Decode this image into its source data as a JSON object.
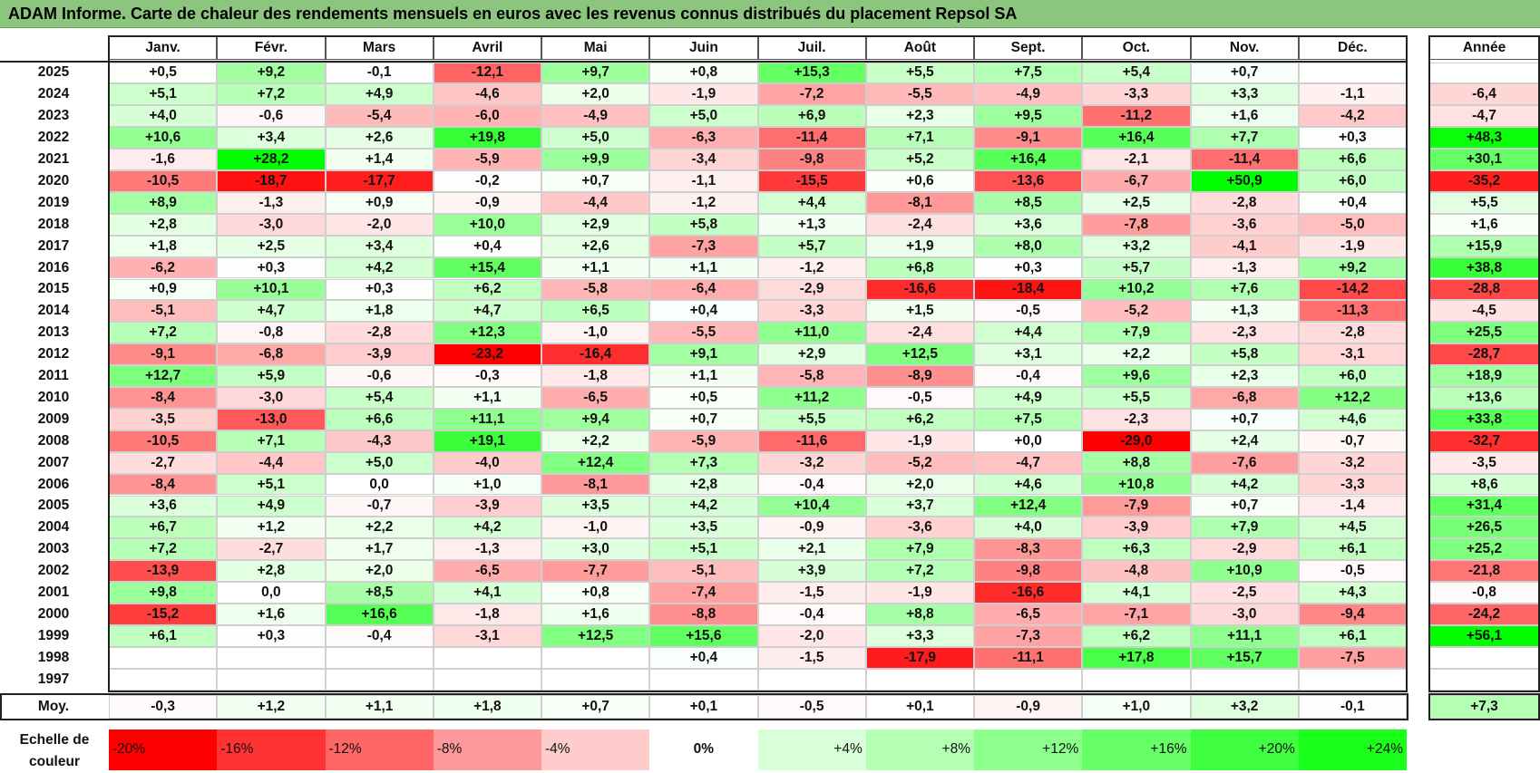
{
  "title": "ADAM Informe. Carte de chaleur des rendements mensuels en euros avec les revenus connus distribués du placement Repsol SA",
  "chart_data": {
    "type": "heatmap",
    "title": "ADAM Informe. Carte de chaleur des rendements mensuels en euros avec les revenus connus distribués du placement Repsol SA",
    "columns": [
      "Janv.",
      "Févr.",
      "Mars",
      "Avril",
      "Mai",
      "Juin",
      "Juil.",
      "Août",
      "Sept.",
      "Oct.",
      "Nov.",
      "Déc."
    ],
    "year_column_label": "Année",
    "rows": [
      {
        "year": "2025",
        "months": [
          "+0,5",
          "+9,2",
          "-0,1",
          "-12,1",
          "+9,7",
          "+0,8",
          "+15,3",
          "+5,5",
          "+7,5",
          "+5,4",
          "+0,7",
          ""
        ],
        "annual": ""
      },
      {
        "year": "2024",
        "months": [
          "+5,1",
          "+7,2",
          "+4,9",
          "-4,6",
          "+2,0",
          "-1,9",
          "-7,2",
          "-5,5",
          "-4,9",
          "-3,3",
          "+3,3",
          "-1,1"
        ],
        "annual": "-6,4"
      },
      {
        "year": "2023",
        "months": [
          "+4,0",
          "-0,6",
          "-5,4",
          "-6,0",
          "-4,9",
          "+5,0",
          "+6,9",
          "+2,3",
          "+9,5",
          "-11,2",
          "+1,6",
          "-4,2"
        ],
        "annual": "-4,7"
      },
      {
        "year": "2022",
        "months": [
          "+10,6",
          "+3,4",
          "+2,6",
          "+19,8",
          "+5,0",
          "-6,3",
          "-11,4",
          "+7,1",
          "-9,1",
          "+16,4",
          "+7,7",
          "+0,3"
        ],
        "annual": "+48,3"
      },
      {
        "year": "2021",
        "months": [
          "-1,6",
          "+28,2",
          "+1,4",
          "-5,9",
          "+9,9",
          "-3,4",
          "-9,8",
          "+5,2",
          "+16,4",
          "-2,1",
          "-11,4",
          "+6,6"
        ],
        "annual": "+30,1"
      },
      {
        "year": "2020",
        "months": [
          "-10,5",
          "-18,7",
          "-17,7",
          "-0,2",
          "+0,7",
          "-1,1",
          "-15,5",
          "+0,6",
          "-13,6",
          "-6,7",
          "+50,9",
          "+6,0"
        ],
        "annual": "-35,2"
      },
      {
        "year": "2019",
        "months": [
          "+8,9",
          "-1,3",
          "+0,9",
          "-0,9",
          "-4,4",
          "-1,2",
          "+4,4",
          "-8,1",
          "+8,5",
          "+2,5",
          "-2,8",
          "+0,4"
        ],
        "annual": "+5,5"
      },
      {
        "year": "2018",
        "months": [
          "+2,8",
          "-3,0",
          "-2,0",
          "+10,0",
          "+2,9",
          "+5,8",
          "+1,3",
          "-2,4",
          "+3,6",
          "-7,8",
          "-3,6",
          "-5,0"
        ],
        "annual": "+1,6"
      },
      {
        "year": "2017",
        "months": [
          "+1,8",
          "+2,5",
          "+3,4",
          "+0,4",
          "+2,6",
          "-7,3",
          "+5,7",
          "+1,9",
          "+8,0",
          "+3,2",
          "-4,1",
          "-1,9"
        ],
        "annual": "+15,9"
      },
      {
        "year": "2016",
        "months": [
          "-6,2",
          "+0,3",
          "+4,2",
          "+15,4",
          "+1,1",
          "+1,1",
          "-1,2",
          "+6,8",
          "+0,3",
          "+5,7",
          "-1,3",
          "+9,2"
        ],
        "annual": "+38,8"
      },
      {
        "year": "2015",
        "months": [
          "+0,9",
          "+10,1",
          "+0,3",
          "+6,2",
          "-5,8",
          "-6,4",
          "-2,9",
          "-16,6",
          "-18,4",
          "+10,2",
          "+7,6",
          "-14,2"
        ],
        "annual": "-28,8"
      },
      {
        "year": "2014",
        "months": [
          "-5,1",
          "+4,7",
          "+1,8",
          "+4,7",
          "+6,5",
          "+0,4",
          "-3,3",
          "+1,5",
          "-0,5",
          "-5,2",
          "+1,3",
          "-11,3"
        ],
        "annual": "-4,5"
      },
      {
        "year": "2013",
        "months": [
          "+7,2",
          "-0,8",
          "-2,8",
          "+12,3",
          "-1,0",
          "-5,5",
          "+11,0",
          "-2,4",
          "+4,4",
          "+7,9",
          "-2,3",
          "-2,8"
        ],
        "annual": "+25,5"
      },
      {
        "year": "2012",
        "months": [
          "-9,1",
          "-6,8",
          "-3,9",
          "-23,2",
          "-16,4",
          "+9,1",
          "+2,9",
          "+12,5",
          "+3,1",
          "+2,2",
          "+5,8",
          "-3,1"
        ],
        "annual": "-28,7"
      },
      {
        "year": "2011",
        "months": [
          "+12,7",
          "+5,9",
          "-0,6",
          "-0,3",
          "-1,8",
          "+1,1",
          "-5,8",
          "-8,9",
          "-0,4",
          "+9,6",
          "+2,3",
          "+6,0"
        ],
        "annual": "+18,9"
      },
      {
        "year": "2010",
        "months": [
          "-8,4",
          "-3,0",
          "+5,4",
          "+1,1",
          "-6,5",
          "+0,5",
          "+11,2",
          "-0,5",
          "+4,9",
          "+5,5",
          "-6,8",
          "+12,2"
        ],
        "annual": "+13,6"
      },
      {
        "year": "2009",
        "months": [
          "-3,5",
          "-13,0",
          "+6,6",
          "+11,1",
          "+9,4",
          "+0,7",
          "+5,5",
          "+6,2",
          "+7,5",
          "-2,3",
          "+0,7",
          "+4,6"
        ],
        "annual": "+33,8"
      },
      {
        "year": "2008",
        "months": [
          "-10,5",
          "+7,1",
          "-4,3",
          "+19,1",
          "+2,2",
          "-5,9",
          "-11,6",
          "-1,9",
          "+0,0",
          "-29,0",
          "+2,4",
          "-0,7"
        ],
        "annual": "-32,7"
      },
      {
        "year": "2007",
        "months": [
          "-2,7",
          "-4,4",
          "+5,0",
          "-4,0",
          "+12,4",
          "+7,3",
          "-3,2",
          "-5,2",
          "-4,7",
          "+8,8",
          "-7,6",
          "-3,2"
        ],
        "annual": "-3,5"
      },
      {
        "year": "2006",
        "months": [
          "-8,4",
          "+5,1",
          "0,0",
          "+1,0",
          "-8,1",
          "+2,8",
          "-0,4",
          "+2,0",
          "+4,6",
          "+10,8",
          "+4,2",
          "-3,3"
        ],
        "annual": "+8,6"
      },
      {
        "year": "2005",
        "months": [
          "+3,6",
          "+4,9",
          "-0,7",
          "-3,9",
          "+3,5",
          "+4,2",
          "+10,4",
          "+3,7",
          "+12,4",
          "-7,9",
          "+0,7",
          "-1,4"
        ],
        "annual": "+31,4"
      },
      {
        "year": "2004",
        "months": [
          "+6,7",
          "+1,2",
          "+2,2",
          "+4,2",
          "-1,0",
          "+3,5",
          "-0,9",
          "-3,6",
          "+4,0",
          "-3,9",
          "+7,9",
          "+4,5"
        ],
        "annual": "+26,5"
      },
      {
        "year": "2003",
        "months": [
          "+7,2",
          "-2,7",
          "+1,7",
          "-1,3",
          "+3,0",
          "+5,1",
          "+2,1",
          "+7,9",
          "-8,3",
          "+6,3",
          "-2,9",
          "+6,1"
        ],
        "annual": "+25,2"
      },
      {
        "year": "2002",
        "months": [
          "-13,9",
          "+2,8",
          "+2,0",
          "-6,5",
          "-7,7",
          "-5,1",
          "+3,9",
          "+7,2",
          "-9,8",
          "-4,8",
          "+10,9",
          "-0,5"
        ],
        "annual": "-21,8"
      },
      {
        "year": "2001",
        "months": [
          "+9,8",
          "0,0",
          "+8,5",
          "+4,1",
          "+0,8",
          "-7,4",
          "-1,5",
          "-1,9",
          "-16,6",
          "+4,1",
          "-2,5",
          "+4,3"
        ],
        "annual": "-0,8"
      },
      {
        "year": "2000",
        "months": [
          "-15,2",
          "+1,6",
          "+16,6",
          "-1,8",
          "+1,6",
          "-8,8",
          "-0,4",
          "+8,8",
          "-6,5",
          "-7,1",
          "-3,0",
          "-9,4"
        ],
        "annual": "-24,2"
      },
      {
        "year": "1999",
        "months": [
          "+6,1",
          "+0,3",
          "-0,4",
          "-3,1",
          "+12,5",
          "+15,6",
          "-2,0",
          "+3,3",
          "-7,3",
          "+6,2",
          "+11,1",
          "+6,1"
        ],
        "annual": "+56,1"
      },
      {
        "year": "1998",
        "months": [
          "",
          "",
          "",
          "",
          "",
          "+0,4",
          "-1,5",
          "-17,9",
          "-11,1",
          "+17,8",
          "+15,7",
          "-7,5"
        ],
        "annual": ""
      },
      {
        "year": "1997",
        "months": [
          "",
          "",
          "",
          "",
          "",
          "",
          "",
          "",
          "",
          "",
          "",
          ""
        ],
        "annual": ""
      }
    ],
    "average": {
      "label": "Moy.",
      "months": [
        "-0,3",
        "+1,2",
        "+1,1",
        "+1,8",
        "+0,7",
        "+0,1",
        "-0,5",
        "+0,1",
        "-0,9",
        "+1,0",
        "+3,2",
        "-0,1"
      ],
      "annual": "+7,3"
    },
    "scale": {
      "label_line1": "Echelle de",
      "label_line2": "couleur",
      "steps": [
        {
          "label": "-20%",
          "value": -20,
          "color": "#ff0000"
        },
        {
          "label": "-16%",
          "value": -16,
          "color": "#ff3333"
        },
        {
          "label": "-12%",
          "value": -12,
          "color": "#ff6666"
        },
        {
          "label": "-8%",
          "value": -8,
          "color": "#ff9999"
        },
        {
          "label": "-4%",
          "value": -4,
          "color": "#ffcccc"
        },
        {
          "label": "0%",
          "value": 0,
          "color": "#ffffff"
        },
        {
          "label": "+4%",
          "value": 4,
          "color": "#d9ffd9"
        },
        {
          "label": "+8%",
          "value": 8,
          "color": "#b3ffb3"
        },
        {
          "label": "+12%",
          "value": 12,
          "color": "#8cff8c"
        },
        {
          "label": "+16%",
          "value": 16,
          "color": "#66ff66"
        },
        {
          "label": "+20%",
          "value": 20,
          "color": "#40ff40"
        },
        {
          "label": "+24%",
          "value": 24,
          "color": "#1aff1a"
        }
      ]
    }
  }
}
